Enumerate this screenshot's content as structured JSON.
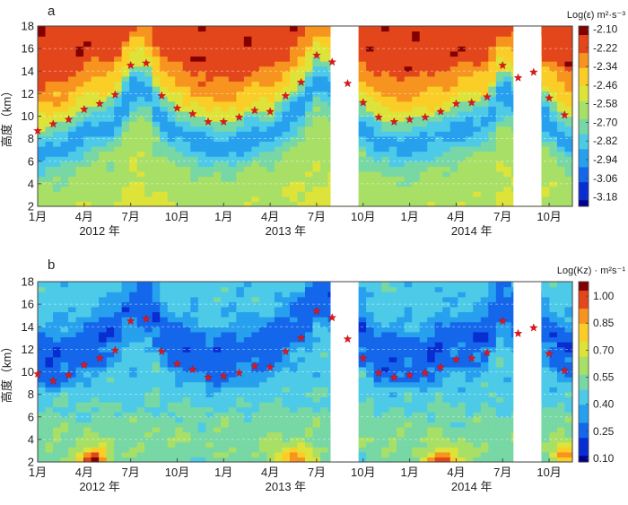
{
  "chart_data": [
    {
      "panel_label": "a",
      "type": "heatmap",
      "ylabel": "高度（km）",
      "ylim": [
        2,
        18
      ],
      "yticks": [
        2,
        4,
        6,
        8,
        10,
        12,
        14,
        16,
        18
      ],
      "xlim": [
        0,
        34.5
      ],
      "xticks": [
        0,
        3,
        6,
        9,
        12,
        15,
        18,
        21,
        24,
        27,
        30,
        33
      ],
      "xtick_labels": [
        "1月",
        "4月",
        "7月",
        "10月",
        "1月",
        "4月",
        "7月",
        "10月",
        "1月",
        "4月",
        "7月",
        "10月"
      ],
      "year_labels": [
        {
          "x": 4,
          "label": "2012 年"
        },
        {
          "x": 16,
          "label": "2013 年"
        },
        {
          "x": 28,
          "label": "2014 年"
        }
      ],
      "gaps": [
        [
          18.9,
          20.7
        ],
        [
          30.7,
          32.5
        ]
      ],
      "colorbar": {
        "label": "Log(ε) m²·s⁻³",
        "min": -3.24,
        "max": -2.08,
        "ticks": [
          "-2.10",
          "-2.22",
          "-2.34",
          "-2.46",
          "-2.58",
          "-2.70",
          "-2.82",
          "-2.94",
          "-3.06",
          "-3.18"
        ]
      },
      "tropopause": {
        "x": [
          0,
          1,
          2,
          3,
          4,
          5,
          6,
          7,
          8,
          9,
          10,
          11,
          12,
          13,
          14,
          15,
          16,
          17,
          18,
          19,
          20,
          21,
          22,
          23,
          24,
          25,
          26,
          27,
          28,
          29,
          30,
          31,
          32,
          33,
          34
        ],
        "y": [
          8.7,
          9.3,
          9.7,
          10.6,
          11.1,
          11.9,
          14.5,
          14.7,
          11.8,
          10.7,
          10.2,
          9.5,
          9.5,
          9.9,
          10.5,
          10.4,
          11.8,
          13.0,
          15.4,
          14.8,
          12.9,
          11.2,
          9.9,
          9.5,
          9.7,
          9.9,
          10.4,
          11.1,
          11.2,
          11.7,
          14.5,
          13.4,
          13.9,
          11.6,
          10.1
        ]
      }
    },
    {
      "panel_label": "b",
      "type": "heatmap",
      "ylabel": "高度（km）",
      "ylim": [
        2,
        18
      ],
      "yticks": [
        2,
        4,
        6,
        8,
        10,
        12,
        14,
        16,
        18
      ],
      "xlim": [
        0,
        34.5
      ],
      "xticks": [
        0,
        3,
        6,
        9,
        12,
        15,
        18,
        21,
        24,
        27,
        30,
        33
      ],
      "xtick_labels": [
        "1月",
        "4月",
        "7月",
        "10月",
        "1月",
        "4月",
        "7月",
        "10月",
        "1月",
        "4月",
        "7月",
        "10月"
      ],
      "year_labels": [
        {
          "x": 4,
          "label": "2012 年"
        },
        {
          "x": 16,
          "label": "2013 年"
        },
        {
          "x": 28,
          "label": "2014 年"
        }
      ],
      "gaps": [
        [
          18.9,
          20.7
        ],
        [
          30.7,
          32.5
        ]
      ],
      "colorbar": {
        "label": "Log(Kz) · m²s⁻¹",
        "min": 0.08,
        "max": 1.08,
        "ticks": [
          "1.00",
          "0.85",
          "0.70",
          "0.55",
          "0.40",
          "0.25",
          "0.10"
        ]
      },
      "tropopause": {
        "x": [
          0,
          1,
          2,
          3,
          4,
          5,
          6,
          7,
          8,
          9,
          10,
          11,
          12,
          13,
          14,
          15,
          16,
          17,
          18,
          19,
          20,
          21,
          22,
          23,
          24,
          25,
          26,
          27,
          28,
          29,
          30,
          31,
          32,
          33,
          34
        ],
        "y": [
          9.8,
          9.2,
          9.7,
          10.6,
          11.2,
          11.9,
          14.5,
          14.7,
          11.8,
          10.7,
          10.2,
          9.5,
          9.6,
          9.9,
          10.5,
          10.4,
          11.8,
          13.0,
          15.4,
          14.8,
          12.9,
          11.2,
          9.9,
          9.5,
          9.7,
          9.9,
          10.4,
          11.1,
          11.2,
          11.7,
          14.5,
          13.4,
          13.9,
          11.6,
          10.1
        ]
      }
    }
  ]
}
